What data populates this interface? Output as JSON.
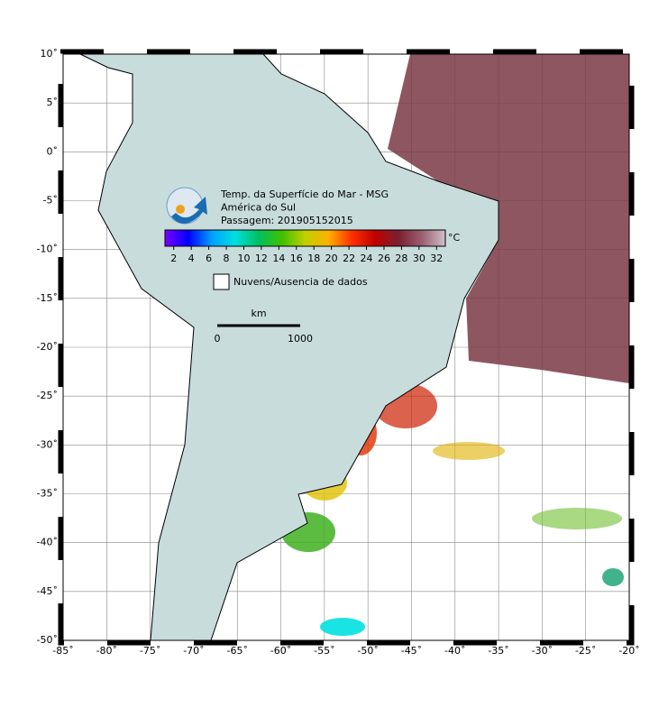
{
  "map": {
    "xlim": [
      -85,
      -20
    ],
    "ylim": [
      -50,
      10
    ],
    "xticks": [
      {
        "value": -85,
        "label": "-85˚"
      },
      {
        "value": -80,
        "label": "-80˚"
      },
      {
        "value": -75,
        "label": "-75˚"
      },
      {
        "value": -70,
        "label": "-70˚"
      },
      {
        "value": -65,
        "label": "-65˚"
      },
      {
        "value": -60,
        "label": "-60˚"
      },
      {
        "value": -55,
        "label": "-55˚"
      },
      {
        "value": -50,
        "label": "-50˚"
      },
      {
        "value": -45,
        "label": "-45˚"
      },
      {
        "value": -40,
        "label": "-40˚"
      },
      {
        "value": -35,
        "label": "-35˚"
      },
      {
        "value": -30,
        "label": "-30˚"
      },
      {
        "value": -25,
        "label": "-25˚"
      },
      {
        "value": -20,
        "label": "-20˚"
      }
    ],
    "yticks": [
      {
        "value": 10,
        "label": "10˚"
      },
      {
        "value": 5,
        "label": "5˚"
      },
      {
        "value": 0,
        "label": "0˚"
      },
      {
        "value": -5,
        "label": "-5˚"
      },
      {
        "value": -10,
        "label": "-10˚"
      },
      {
        "value": -15,
        "label": "-15˚"
      },
      {
        "value": -20,
        "label": "-20˚"
      },
      {
        "value": -25,
        "label": "-25˚"
      },
      {
        "value": -30,
        "label": "-30˚"
      },
      {
        "value": -35,
        "label": "-35˚"
      },
      {
        "value": -40,
        "label": "-40˚"
      },
      {
        "value": -45,
        "label": "-45˚"
      },
      {
        "value": -50,
        "label": "-50˚"
      }
    ],
    "grid": true,
    "title_lines": [
      "Temp. da Superfície do Mar - MSG",
      "América do Sul",
      "Passagem: 201905152015"
    ],
    "colorbar": {
      "lim": [
        1,
        33
      ],
      "ticks": [
        2,
        4,
        6,
        8,
        10,
        12,
        14,
        16,
        18,
        20,
        22,
        24,
        26,
        28,
        30,
        32
      ],
      "unit": "°C",
      "colors": [
        "#7a00ff",
        "#0000ff",
        "#00a0ff",
        "#00e0e0",
        "#00c060",
        "#40c000",
        "#c0d000",
        "#ffb000",
        "#ff3000",
        "#c00000",
        "#7a2030",
        "#9a6070",
        "#d0c0c8"
      ]
    },
    "legend": "Nuvens/Ausencia de dados",
    "scale_bar": {
      "unit": "km",
      "ticks": [
        0,
        1000
      ]
    }
  }
}
